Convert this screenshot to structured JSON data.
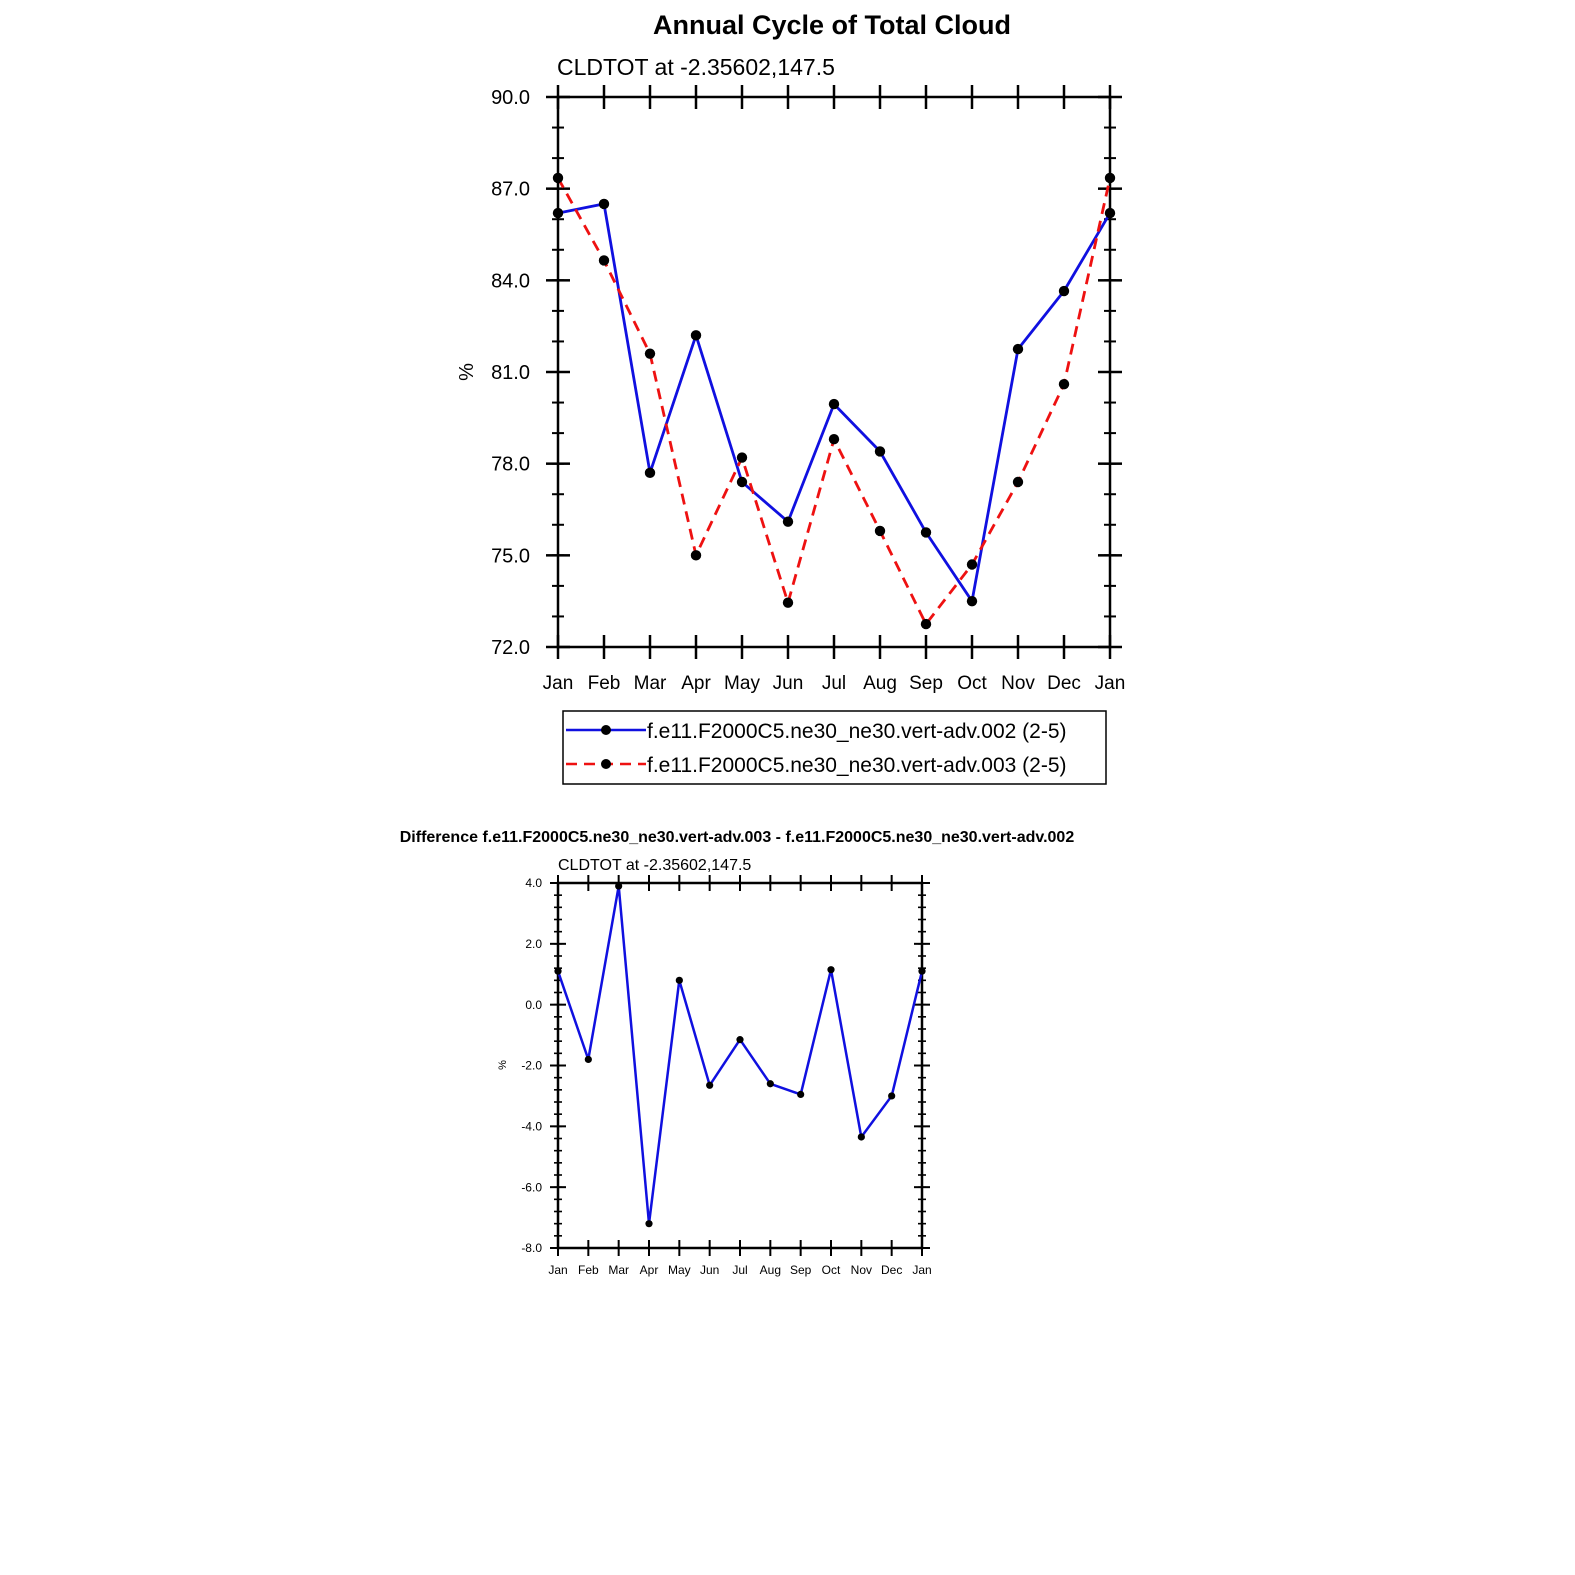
{
  "chart_data": [
    {
      "type": "line",
      "title": "Annual Cycle of Total Cloud",
      "subtitle": "CLDTOT at -2.35602,147.5",
      "xlabel": "",
      "ylabel": "%",
      "categories": [
        "Jan",
        "Feb",
        "Mar",
        "Apr",
        "May",
        "Jun",
        "Jul",
        "Aug",
        "Sep",
        "Oct",
        "Nov",
        "Dec",
        "Jan"
      ],
      "ylim": [
        72.0,
        90.0
      ],
      "yticks": [
        "72.0",
        "75.0",
        "78.0",
        "81.0",
        "84.0",
        "87.0",
        "90.0"
      ],
      "grid": false,
      "legend_position": "bottom",
      "series": [
        {
          "name": "f.e11.F2000C5.ne30_ne30.vert-adv.002 (2-5)",
          "color": "#1010e0",
          "dash": "solid",
          "values": [
            86.2,
            86.5,
            77.7,
            82.2,
            77.4,
            76.1,
            79.95,
            78.4,
            75.75,
            73.5,
            81.75,
            83.65,
            86.2
          ]
        },
        {
          "name": "f.e11.F2000C5.ne30_ne30.vert-adv.003 (2-5)",
          "color": "#ee1111",
          "dash": "dashed",
          "values": [
            87.35,
            84.65,
            81.6,
            75.0,
            78.2,
            73.45,
            78.8,
            75.8,
            72.75,
            74.7,
            77.4,
            80.6,
            87.35
          ]
        }
      ]
    },
    {
      "type": "line",
      "title": "Difference f.e11.F2000C5.ne30_ne30.vert-adv.003 - f.e11.F2000C5.ne30_ne30.vert-adv.002",
      "subtitle": "CLDTOT at -2.35602,147.5",
      "xlabel": "",
      "ylabel": "%",
      "categories": [
        "Jan",
        "Feb",
        "Mar",
        "Apr",
        "May",
        "Jun",
        "Jul",
        "Aug",
        "Sep",
        "Oct",
        "Nov",
        "Dec",
        "Jan"
      ],
      "ylim": [
        -8.0,
        4.0
      ],
      "yticks": [
        "-8.0",
        "-6.0",
        "-4.0",
        "-2.0",
        "0.0",
        "2.0",
        "4.0"
      ],
      "grid": false,
      "series": [
        {
          "color": "#1010e0",
          "values": [
            1.1,
            -1.8,
            3.9,
            -7.2,
            0.8,
            -2.65,
            -1.15,
            -2.6,
            -2.95,
            1.15,
            -4.35,
            -3.0,
            1.1
          ]
        }
      ]
    }
  ]
}
